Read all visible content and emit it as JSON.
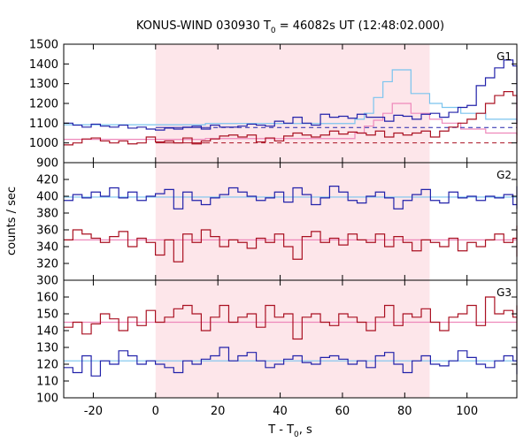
{
  "chart_data": {
    "type": "line",
    "title_main": "KONUS-WIND 030930 T",
    "title_sub": "0",
    "title_rest": " = 46082s UT (12:48:02.000)",
    "xlabel_main": "T - T",
    "xlabel_sub": "0",
    "xlabel_rest": ", s",
    "ylabel": "counts / sec",
    "xlim": [
      -29.5,
      116
    ],
    "xticks": [
      -20,
      0,
      20,
      40,
      60,
      80,
      100
    ],
    "x_tick_labels": [
      "-20",
      "0",
      "20",
      "40",
      "60",
      "80",
      "100"
    ],
    "shaded_interval": [
      0,
      88
    ],
    "colors": {
      "blue": "#2222aa",
      "red": "#aa1122",
      "light_blue": "#7ac4ee",
      "light_red": "#ee88bb",
      "shade": "#fde6ea"
    },
    "panels": [
      {
        "label": "G1",
        "ylim": [
          900,
          1500
        ],
        "yticks": [
          900,
          1000,
          1100,
          1200,
          1300,
          1400,
          1500
        ],
        "y_tick_labels": [
          "900",
          "1000",
          "1100",
          "1200",
          "1300",
          "1400",
          "1500"
        ],
        "series": [
          {
            "color": "blue",
            "x_start": -29.5,
            "bin": 2.944,
            "values": [
              1100,
              1090,
              1080,
              1095,
              1085,
              1080,
              1090,
              1075,
              1080,
              1070,
              1065,
              1075,
              1070,
              1080,
              1085,
              1070,
              1090,
              1080,
              1080,
              1085,
              1095,
              1090,
              1085,
              1110,
              1100,
              1130,
              1100,
              1090,
              1145,
              1130,
              1135,
              1125,
              1145,
              1130,
              1130,
              1110,
              1140,
              1135,
              1120,
              1145,
              1150,
              1130,
              1155,
              1180,
              1190,
              1290,
              1330,
              1380,
              1420,
              1390,
              1220,
              1165,
              1200,
              1130,
              1100,
              1130,
              1100,
              1125,
              1120,
              1140,
              1130,
              1110,
              1130,
              1120,
              1130,
              1110,
              1135,
              1120,
              1140,
              1130,
              1130,
              1120,
              1115,
              1110,
              1100,
              1095
            ]
          },
          {
            "color": "red",
            "x_start": -29.5,
            "bin": 2.944,
            "values": [
              990,
              1000,
              1020,
              1025,
              1010,
              1000,
              1010,
              995,
              1000,
              1030,
              1005,
              1010,
              1000,
              1025,
              995,
              1010,
              1020,
              1035,
              1040,
              1030,
              1040,
              1005,
              1025,
              1010,
              1035,
              1050,
              1040,
              1030,
              1040,
              1060,
              1045,
              1055,
              1050,
              1040,
              1060,
              1030,
              1050,
              1040,
              1050,
              1060,
              1030,
              1060,
              1080,
              1100,
              1120,
              1150,
              1200,
              1240,
              1260,
              1240,
              1180,
              1110,
              1125,
              1080,
              1050,
              1020,
              1030,
              1030,
              1025,
              1020,
              1010,
              1030,
              1020,
              1010,
              1020,
              1020,
              1025,
              1020,
              1010,
              1020,
              1000,
              1010,
              1020,
              1010,
              1010,
              1000
            ]
          }
        ],
        "fit_steps": [
          {
            "color": "light_blue",
            "points": [
              [
                -29.5,
                1092
              ],
              [
                0,
                1092
              ],
              [
                16,
                1098
              ],
              [
                64,
                1120
              ],
              [
                67,
                1150
              ],
              [
                70,
                1230
              ],
              [
                73,
                1310
              ],
              [
                76,
                1370
              ],
              [
                82,
                1250
              ],
              [
                88,
                1200
              ],
              [
                92,
                1180
              ],
              [
                98,
                1150
              ],
              [
                106,
                1120
              ],
              [
                116,
                1105
              ]
            ]
          },
          {
            "color": "light_red",
            "points": [
              [
                -29.5,
                1018
              ],
              [
                0,
                1018
              ],
              [
                16,
                1022
              ],
              [
                64,
                1050
              ],
              [
                67,
                1085
              ],
              [
                70,
                1115
              ],
              [
                73,
                1150
              ],
              [
                76,
                1200
              ],
              [
                82,
                1150
              ],
              [
                88,
                1120
              ],
              [
                92,
                1100
              ],
              [
                98,
                1070
              ],
              [
                106,
                1050
              ],
              [
                116,
                1040
              ]
            ]
          }
        ],
        "background_lines": [
          {
            "color": "blue",
            "y": 1078,
            "x_from": 0,
            "dashed_from": 16
          },
          {
            "color": "red",
            "y": 1000,
            "x_from": 0,
            "dashed_from": 16
          }
        ]
      },
      {
        "label": "G2",
        "ylim": [
          300,
          440
        ],
        "yticks": [
          300,
          320,
          340,
          360,
          380,
          400,
          420
        ],
        "y_tick_labels": [
          "300",
          "320",
          "340",
          "360",
          "380",
          "400",
          "420"
        ],
        "series": [
          {
            "color": "blue",
            "x_start": -29.5,
            "bin": 2.944,
            "values": [
              395,
              402,
              398,
              405,
              400,
              410,
              398,
              405,
              395,
              400,
              403,
              408,
              385,
              405,
              395,
              390,
              398,
              402,
              410,
              405,
              400,
              395,
              398,
              405,
              393,
              410,
              402,
              390,
              398,
              412,
              405,
              395,
              392,
              400,
              405,
              398,
              385,
              395,
              402,
              408,
              395,
              392,
              405,
              398,
              400,
              395,
              400,
              398,
              402,
              390,
              412,
              405,
              398,
              395,
              402,
              392,
              398,
              385,
              395,
              402,
              405,
              398,
              390,
              385,
              395,
              398,
              405,
              392,
              396,
              398,
              410,
              402,
              390,
              395,
              398,
              400
            ]
          },
          {
            "color": "red",
            "x_start": -29.5,
            "bin": 2.944,
            "values": [
              348,
              360,
              355,
              350,
              345,
              352,
              358,
              340,
              350,
              345,
              330,
              348,
              322,
              355,
              345,
              360,
              352,
              340,
              348,
              345,
              338,
              350,
              345,
              355,
              340,
              325,
              352,
              358,
              345,
              350,
              342,
              355,
              348,
              345,
              355,
              340,
              352,
              345,
              335,
              348,
              345,
              340,
              350,
              335,
              345,
              340,
              348,
              355,
              345,
              350,
              338,
              345,
              355,
              348,
              335,
              350,
              342,
              360,
              345,
              350,
              345,
              338,
              352,
              365,
              342,
              328,
              350,
              345,
              340,
              350,
              345,
              340,
              345,
              350,
              348,
              350
            ]
          }
        ],
        "fit_steps": [
          {
            "color": "light_blue",
            "points": [
              [
                -29.5,
                399
              ],
              [
                116,
                399
              ]
            ]
          },
          {
            "color": "light_red",
            "points": [
              [
                -29.5,
                348
              ],
              [
                116,
                348
              ]
            ]
          }
        ],
        "background_lines": []
      },
      {
        "label": "G3",
        "ylim": [
          100,
          170
        ],
        "yticks": [
          100,
          110,
          120,
          130,
          140,
          150,
          160
        ],
        "y_tick_labels": [
          "100",
          "110",
          "120",
          "130",
          "140",
          "150",
          "160"
        ],
        "series": [
          {
            "color": "blue",
            "x_start": -29.5,
            "bin": 2.944,
            "values": [
              118,
              115,
              125,
              113,
              122,
              120,
              128,
              125,
              120,
              122,
              120,
              118,
              115,
              122,
              120,
              123,
              125,
              130,
              122,
              125,
              127,
              122,
              118,
              120,
              123,
              125,
              121,
              120,
              124,
              125,
              123,
              120,
              122,
              118,
              125,
              127,
              120,
              115,
              122,
              125,
              120,
              119,
              122,
              128,
              124,
              120,
              118,
              122,
              125,
              122,
              120,
              124,
              126,
              122,
              120,
              118,
              124,
              120,
              122,
              125,
              120,
              114,
              118,
              122,
              125,
              120,
              118,
              122,
              115,
              125,
              130,
              124,
              118,
              122,
              130,
              128
            ]
          },
          {
            "color": "red",
            "x_start": -29.5,
            "bin": 2.944,
            "values": [
              142,
              145,
              138,
              144,
              150,
              147,
              140,
              148,
              143,
              152,
              145,
              148,
              153,
              155,
              150,
              140,
              148,
              155,
              145,
              148,
              150,
              142,
              155,
              148,
              150,
              135,
              148,
              150,
              145,
              143,
              150,
              148,
              145,
              140,
              148,
              155,
              143,
              150,
              148,
              153,
              145,
              140,
              148,
              150,
              155,
              143,
              160,
              150,
              152,
              148,
              143,
              150,
              155,
              145,
              140,
              150,
              148,
              153,
              144,
              150,
              148,
              155,
              140,
              145,
              148,
              143,
              150,
              148,
              145,
              150,
              148,
              143,
              145,
              150,
              148,
              150
            ]
          }
        ],
        "fit_steps": [
          {
            "color": "light_blue",
            "points": [
              [
                -29.5,
                122
              ],
              [
                116,
                122
              ]
            ]
          },
          {
            "color": "light_red",
            "points": [
              [
                -29.5,
                145
              ],
              [
                116,
                145
              ]
            ]
          }
        ],
        "background_lines": []
      }
    ]
  }
}
